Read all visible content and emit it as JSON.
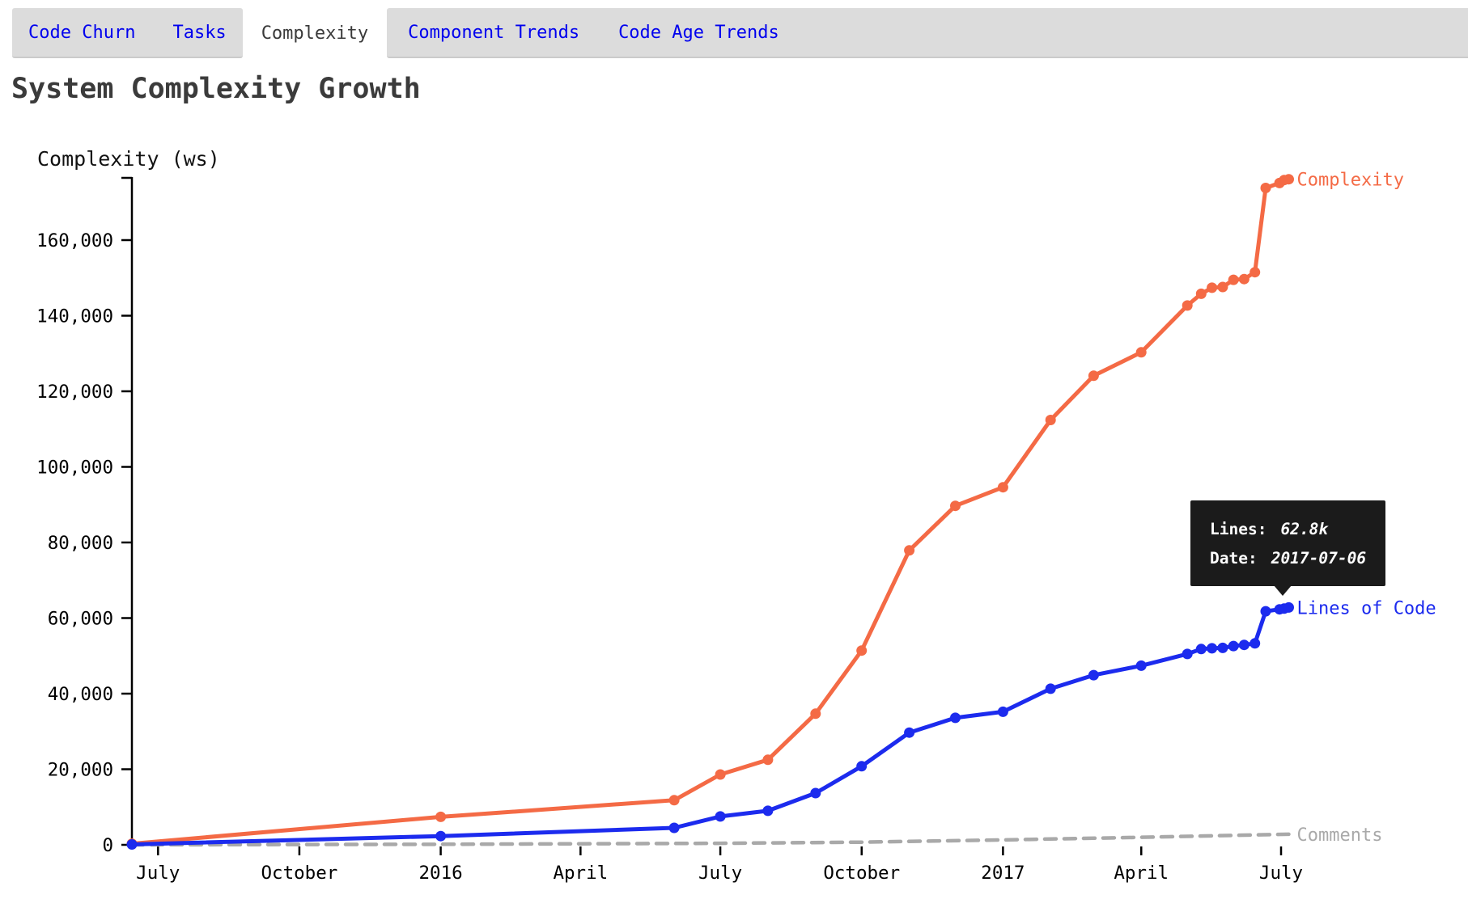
{
  "page_title": "System Complexity Growth",
  "tab_bar": {
    "tabs": [
      {
        "label": "Code Churn",
        "active": false
      },
      {
        "label": "Tasks",
        "active": false
      },
      {
        "label": "Complexity",
        "active": true
      },
      {
        "label": "Component Trends",
        "active": false
      },
      {
        "label": "Code Age Trends",
        "active": false
      }
    ]
  },
  "tooltip": {
    "rows": [
      {
        "label": "Lines:",
        "value": "62.8k"
      },
      {
        "label": "Date:",
        "value": "2017-07-06"
      }
    ]
  },
  "colors": {
    "complexity_series": "#f46a45",
    "lines_series": "#1c2bee",
    "comments_series": "#a9a9a9",
    "tab_link": "#0000ee",
    "tab_bar_bg": "#dcdcdc",
    "tooltip_bg": "#1b1b1b",
    "title_text": "#3b3b3b"
  },
  "chart_data": {
    "type": "line",
    "title": "System Complexity Growth",
    "y_axis_label": "Complexity (ws)",
    "xlabel": "",
    "ylabel": "Complexity (ws)",
    "x_domain": [
      "2015-06-14",
      "2017-07-10"
    ],
    "ylim": [
      0,
      176500
    ],
    "grid": false,
    "legend_position": "line-end",
    "y_ticks": [
      {
        "value": 0,
        "label": "0"
      },
      {
        "value": 20000,
        "label": "20,000"
      },
      {
        "value": 40000,
        "label": "40,000"
      },
      {
        "value": 60000,
        "label": "60,000"
      },
      {
        "value": 80000,
        "label": "80,000"
      },
      {
        "value": 100000,
        "label": "100,000"
      },
      {
        "value": 120000,
        "label": "120,000"
      },
      {
        "value": 140000,
        "label": "140,000"
      },
      {
        "value": 160000,
        "label": "160,000"
      }
    ],
    "x_ticks": [
      {
        "date": "2015-07-01",
        "label": "July"
      },
      {
        "date": "2015-10-01",
        "label": "October"
      },
      {
        "date": "2016-01-01",
        "label": "2016"
      },
      {
        "date": "2016-04-01",
        "label": "April"
      },
      {
        "date": "2016-07-01",
        "label": "July"
      },
      {
        "date": "2016-10-01",
        "label": "October"
      },
      {
        "date": "2017-01-01",
        "label": "2017"
      },
      {
        "date": "2017-04-01",
        "label": "April"
      },
      {
        "date": "2017-07-01",
        "label": "July"
      }
    ],
    "series": [
      {
        "id": "comments",
        "name": "Comments",
        "color": "#a9a9a9",
        "dashed": true,
        "points": false,
        "width": 4.5,
        "x": [
          "2015-06-14",
          "2016-01-01",
          "2016-07-01",
          "2016-10-01",
          "2017-01-01",
          "2017-04-01",
          "2017-07-06"
        ],
        "values": [
          0,
          150,
          400,
          700,
          1300,
          2000,
          2800
        ]
      },
      {
        "id": "complexity",
        "name": "Complexity",
        "color": "#f46a45",
        "dashed": false,
        "points": true,
        "width": 5,
        "x": [
          "2015-06-14",
          "2016-01-01",
          "2016-06-01",
          "2016-07-01",
          "2016-08-01",
          "2016-09-01",
          "2016-10-01",
          "2016-11-01",
          "2016-12-01",
          "2017-01-01",
          "2017-02-01",
          "2017-03-01",
          "2017-04-01",
          "2017-05-01",
          "2017-05-10",
          "2017-05-17",
          "2017-05-24",
          "2017-05-31",
          "2017-06-07",
          "2017-06-14",
          "2017-06-21",
          "2017-06-30",
          "2017-07-03",
          "2017-07-06"
        ],
        "values": [
          300,
          7400,
          11800,
          18600,
          22500,
          34700,
          51400,
          77900,
          89700,
          94600,
          112400,
          124100,
          130300,
          142700,
          145800,
          147400,
          147600,
          149500,
          149700,
          151500,
          173800,
          175100,
          175900,
          176100
        ]
      },
      {
        "id": "lines-of-code",
        "name": "Lines of Code",
        "color": "#1c2bee",
        "dashed": false,
        "points": true,
        "width": 5,
        "x": [
          "2015-06-14",
          "2016-01-01",
          "2016-06-01",
          "2016-07-01",
          "2016-08-01",
          "2016-09-01",
          "2016-10-01",
          "2016-11-01",
          "2016-12-01",
          "2017-01-01",
          "2017-02-01",
          "2017-03-01",
          "2017-04-01",
          "2017-05-01",
          "2017-05-10",
          "2017-05-17",
          "2017-05-24",
          "2017-05-31",
          "2017-06-07",
          "2017-06-14",
          "2017-06-21",
          "2017-06-30",
          "2017-07-03",
          "2017-07-06"
        ],
        "values": [
          100,
          2300,
          4500,
          7500,
          9000,
          13700,
          20800,
          29700,
          33600,
          35200,
          41300,
          44900,
          47400,
          50500,
          51800,
          52000,
          52100,
          52600,
          52900,
          53300,
          61800,
          62300,
          62500,
          62800
        ]
      }
    ],
    "tooltip_point": {
      "series": "lines-of-code",
      "date": "2017-07-06",
      "value_label": "62.8k"
    }
  }
}
